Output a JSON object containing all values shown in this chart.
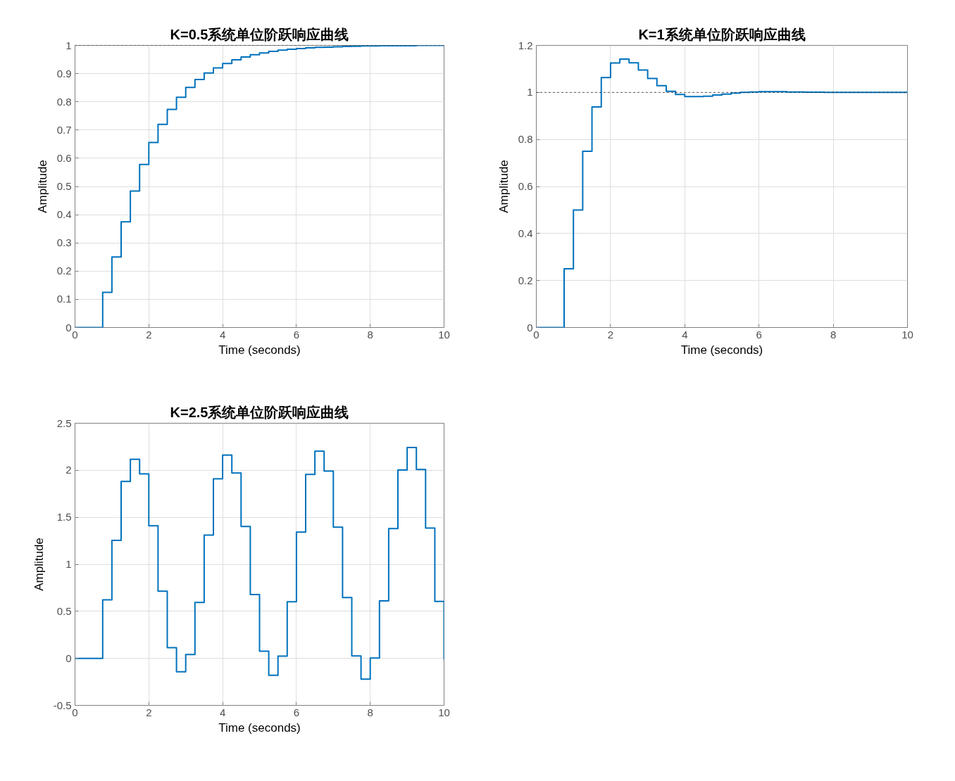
{
  "chart_data": [
    {
      "type": "step",
      "title": "K=0.5系统单位阶跃响应曲线",
      "xlabel": "Time (seconds)",
      "ylabel": "Amplitude",
      "x": [
        0,
        0.25,
        0.5,
        0.75,
        1,
        1.25,
        1.5,
        1.75,
        2,
        2.25,
        2.5,
        2.75,
        3,
        3.25,
        3.5,
        3.75,
        4,
        4.25,
        4.5,
        4.75,
        5,
        5.25,
        5.5,
        5.75,
        6,
        6.25,
        6.5,
        6.75,
        7,
        7.25,
        7.5,
        7.75,
        8,
        8.25,
        8.5,
        8.75,
        9,
        9.25,
        9.5,
        9.75,
        10
      ],
      "series": [
        {
          "color": "#0072bd",
          "values": [
            0,
            0,
            0,
            0.125,
            0.25,
            0.375,
            0.484,
            0.578,
            0.656,
            0.72,
            0.773,
            0.816,
            0.851,
            0.879,
            0.902,
            0.92,
            0.936,
            0.949,
            0.959,
            0.967,
            0.973,
            0.979,
            0.983,
            0.986,
            0.989,
            0.991,
            0.993,
            0.994,
            0.995,
            0.996,
            0.997,
            0.998,
            0.998,
            0.999,
            0.999,
            0.999,
            0.999,
            1,
            1,
            1,
            1
          ]
        }
      ],
      "xlim": [
        0,
        10
      ],
      "ylim": [
        0,
        1
      ],
      "xticks": [
        0,
        2,
        4,
        6,
        8,
        10
      ],
      "yticks": [
        0,
        0.1,
        0.2,
        0.3,
        0.4,
        0.5,
        0.6,
        0.7,
        0.8,
        0.9,
        1
      ],
      "grid": true,
      "ref_lines": [
        {
          "axis": "y",
          "value": 1,
          "color": "#262626",
          "line_style": "dotted"
        }
      ]
    },
    {
      "type": "step",
      "title": "K=1系统单位阶跃响应曲线",
      "xlabel": "Time (seconds)",
      "ylabel": "Amplitude",
      "x": [
        0,
        0.25,
        0.5,
        0.75,
        1,
        1.25,
        1.5,
        1.75,
        2,
        2.25,
        2.5,
        2.75,
        3,
        3.25,
        3.5,
        3.75,
        4,
        4.25,
        4.5,
        4.75,
        5,
        5.25,
        5.5,
        5.75,
        6,
        6.25,
        6.5,
        6.75,
        7,
        7.25,
        7.5,
        7.75,
        8,
        8.25,
        8.5,
        8.75,
        9,
        9.25,
        9.5,
        9.75,
        10
      ],
      "series": [
        {
          "color": "#0072bd",
          "values": [
            0,
            0,
            0,
            0.25,
            0.5,
            0.75,
            0.938,
            1.063,
            1.125,
            1.142,
            1.126,
            1.095,
            1.059,
            1.029,
            1.005,
            0.991,
            0.982,
            0.982,
            0.984,
            0.989,
            0.993,
            0.997,
            1,
            1.002,
            1.003,
            1.003,
            1.003,
            1.002,
            1.002,
            1.001,
            1.001,
            1,
            1,
            1,
            1,
            1,
            1,
            1,
            1,
            1,
            1
          ]
        }
      ],
      "xlim": [
        0,
        10
      ],
      "ylim": [
        0,
        1.2
      ],
      "xticks": [
        0,
        2,
        4,
        6,
        8,
        10
      ],
      "yticks": [
        0,
        0.2,
        0.4,
        0.6,
        0.8,
        1,
        1.2
      ],
      "grid": true,
      "ref_lines": [
        {
          "axis": "y",
          "value": 1,
          "color": "#262626",
          "line_style": "dotted"
        }
      ]
    },
    {
      "type": "step",
      "title": "K=2.5系统单位阶跃响应曲线",
      "xlabel": "Time (seconds)",
      "ylabel": "Amplitude",
      "x": [
        0,
        0.25,
        0.5,
        0.75,
        1,
        1.25,
        1.5,
        1.75,
        2,
        2.25,
        2.5,
        2.75,
        3,
        3.25,
        3.5,
        3.75,
        4,
        4.25,
        4.5,
        4.75,
        5,
        5.25,
        5.5,
        5.75,
        6,
        6.25,
        6.5,
        6.75,
        7,
        7.25,
        7.5,
        7.75,
        8,
        8.25,
        8.5,
        8.75,
        9,
        9.25,
        9.5,
        9.75,
        10
      ],
      "series": [
        {
          "color": "#0072bd",
          "values": [
            0,
            0,
            0,
            0.623,
            1.254,
            1.88,
            2.116,
            1.962,
            1.409,
            0.713,
            0.114,
            -0.143,
            0.041,
            0.594,
            1.31,
            1.909,
            2.162,
            1.97,
            1.403,
            0.678,
            0.076,
            -0.18,
            0.023,
            0.602,
            1.342,
            1.956,
            2.203,
            1.991,
            1.394,
            0.646,
            0.026,
            -0.221,
            0.003,
            0.611,
            1.38,
            2.002,
            2.241,
            2.008,
            1.385,
            0.605,
            -0.01
          ]
        }
      ],
      "xlim": [
        0,
        10
      ],
      "ylim": [
        -0.5,
        2.5
      ],
      "xticks": [
        0,
        2,
        4,
        6,
        8,
        10
      ],
      "yticks": [
        -0.5,
        0,
        0.5,
        1,
        1.5,
        2,
        2.5
      ],
      "grid": true
    }
  ]
}
